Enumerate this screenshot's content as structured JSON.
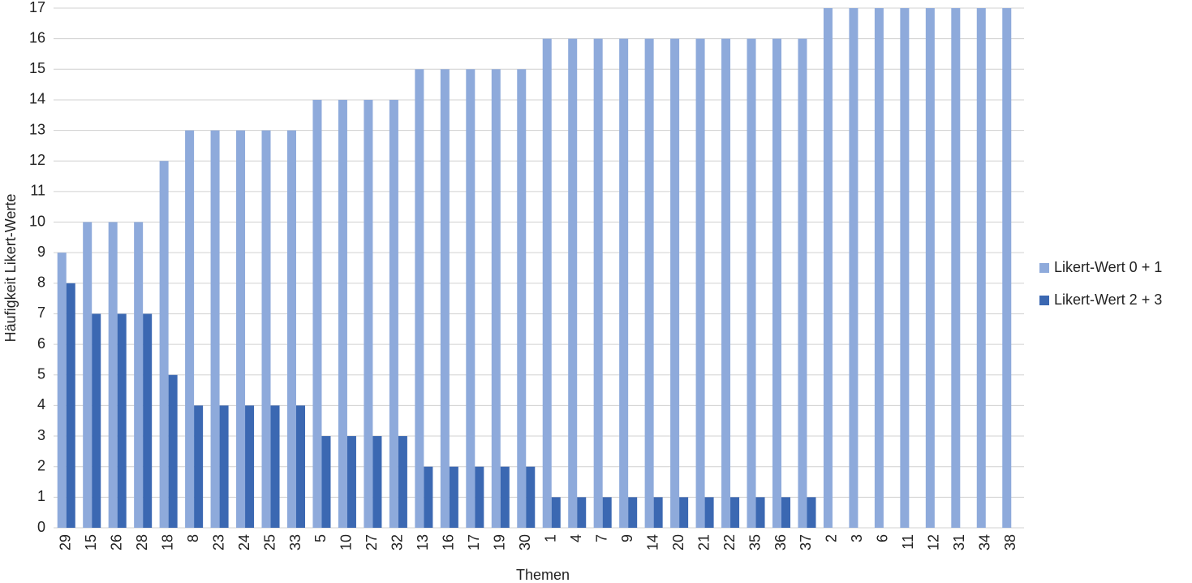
{
  "chart_data": {
    "type": "bar",
    "x_label": "Themen",
    "y_label": "Häufigkeit Likert-Werte",
    "categories": [
      "29",
      "15",
      "26",
      "28",
      "18",
      "8",
      "23",
      "24",
      "25",
      "33",
      "5",
      "10",
      "27",
      "32",
      "13",
      "16",
      "17",
      "19",
      "30",
      "1",
      "4",
      "7",
      "9",
      "14",
      "20",
      "21",
      "22",
      "35",
      "36",
      "37",
      "2",
      "3",
      "6",
      "11",
      "12",
      "31",
      "34",
      "38"
    ],
    "series": [
      {
        "name": "Likert-Wert 0 + 1",
        "color": "#8eaadb",
        "values": [
          9,
          10,
          10,
          10,
          12,
          13,
          13,
          13,
          13,
          13,
          14,
          14,
          14,
          14,
          15,
          15,
          15,
          15,
          15,
          16,
          16,
          16,
          16,
          16,
          16,
          16,
          16,
          16,
          16,
          16,
          17,
          17,
          17,
          17,
          17,
          17,
          17,
          17
        ]
      },
      {
        "name": "Likert-Wert 2 + 3",
        "color": "#3b68b2",
        "values": [
          8,
          7,
          7,
          7,
          5,
          4,
          4,
          4,
          4,
          4,
          3,
          3,
          3,
          3,
          2,
          2,
          2,
          2,
          2,
          1,
          1,
          1,
          1,
          1,
          1,
          1,
          1,
          1,
          1,
          1,
          0,
          0,
          0,
          0,
          0,
          0,
          0,
          0
        ]
      }
    ],
    "ylim": [
      0,
      17
    ],
    "yticks": [
      0,
      1,
      2,
      3,
      4,
      5,
      6,
      7,
      8,
      9,
      10,
      11,
      12,
      13,
      14,
      15,
      16,
      17
    ],
    "grid": true,
    "legend": "right"
  }
}
